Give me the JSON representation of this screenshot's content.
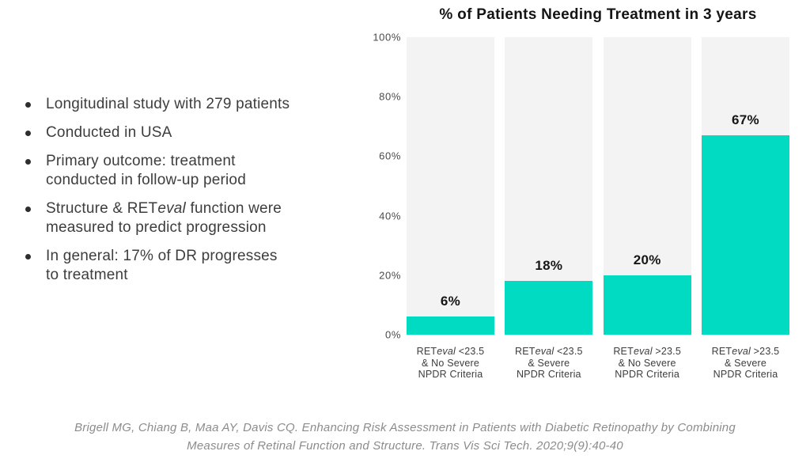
{
  "bullets": [
    {
      "line1": "Longitudinal study with 279 patients"
    },
    {
      "line1": "Conducted in USA"
    },
    {
      "line1": "Primary outcome: treatment",
      "line2": "conducted in follow-up period"
    },
    {
      "line1_pre": "Structure & RET",
      "line1_italic": "eval",
      "line1_post": " function were",
      "line2": "measured to predict progression"
    },
    {
      "line1": "In general: 17% of DR progresses",
      "line2": "to treatment"
    }
  ],
  "chart": {
    "title": "% of Patients Needing Treatment in 3 years",
    "y_ticks": [
      "100%",
      "80%",
      "60%",
      "40%",
      "20%",
      "0%"
    ],
    "bars": [
      {
        "value": 6,
        "value_label": "6%",
        "cat_ret": "RET",
        "cat_eval": "eval",
        "cat_rest": " <23.5",
        "cat_line2": "& No Severe",
        "cat_line3": "NPDR Criteria"
      },
      {
        "value": 18,
        "value_label": "18%",
        "cat_ret": "RET",
        "cat_eval": "eval",
        "cat_rest": " <23.5",
        "cat_line2": "& Severe",
        "cat_line3": "NPDR Criteria"
      },
      {
        "value": 20,
        "value_label": "20%",
        "cat_ret": "RET",
        "cat_eval": "eval",
        "cat_rest": " >23.5",
        "cat_line2": "& No Severe",
        "cat_line3": "NPDR Criteria"
      },
      {
        "value": 67,
        "value_label": "67%",
        "cat_ret": "RET",
        "cat_eval": "eval",
        "cat_rest": " >23.5",
        "cat_line2": "& Severe",
        "cat_line3": "NPDR Criteria"
      }
    ],
    "bar_color": "#00dbc2",
    "track_color": "#f3f3f3"
  },
  "chart_data": {
    "type": "bar",
    "title": "% of Patients Needing Treatment in 3 years",
    "categories": [
      "RETeval <23.5 & No Severe NPDR Criteria",
      "RETeval <23.5 & Severe NPDR Criteria",
      "RETeval >23.5 & No Severe NPDR Criteria",
      "RETeval >23.5 & Severe NPDR Criteria"
    ],
    "values": [
      6,
      18,
      20,
      67
    ],
    "data_labels": [
      "6%",
      "18%",
      "20%",
      "67%"
    ],
    "xlabel": "",
    "ylabel": "",
    "ylim": [
      0,
      100
    ],
    "y_tick_labels": [
      "0%",
      "20%",
      "40%",
      "60%",
      "80%",
      "100%"
    ],
    "grid": false,
    "legend": false,
    "bar_color": "#00dbc2",
    "background_track_color": "#f3f3f3"
  },
  "citation": {
    "lines": [
      "Brigell MG, Chiang B, Maa AY, Davis CQ. Enhancing Risk Assessment in Patients with Diabetic Retinopathy by Combining",
      "Measures of Retinal Function and Structure. Trans Vis Sci Tech. 2020;9(9):40-40"
    ]
  }
}
